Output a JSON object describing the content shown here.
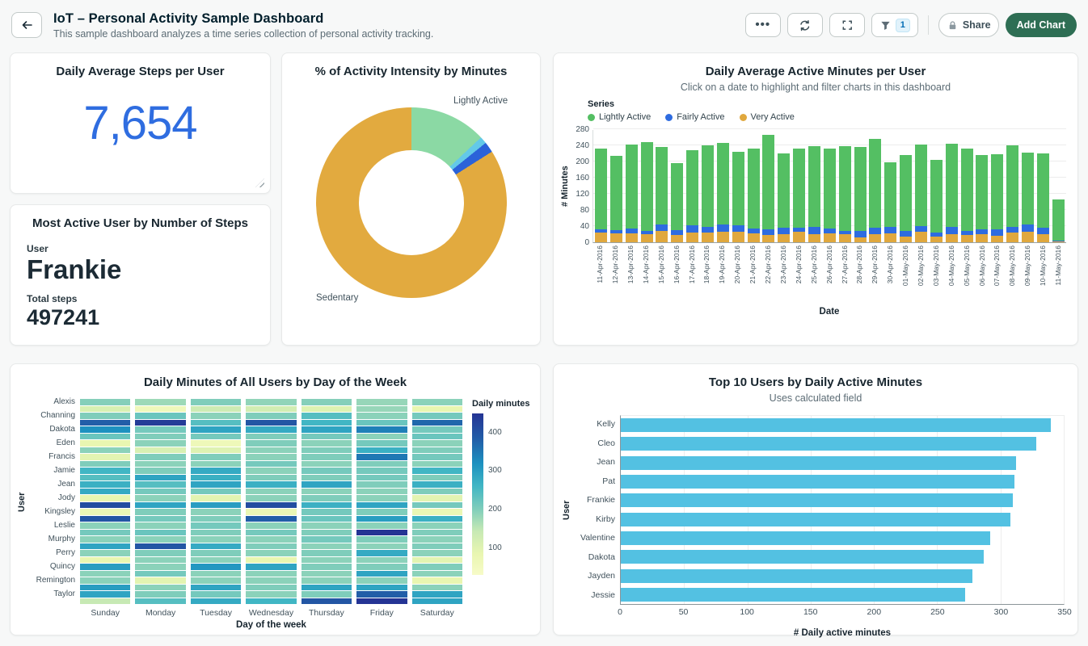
{
  "header": {
    "title": "IoT – Personal Activity Sample Dashboard",
    "subtitle": "This sample dashboard analyzes a time series collection of personal activity tracking.",
    "toolbar": {
      "more_label": "•••",
      "filter_badge": "1",
      "share_label": "Share",
      "add_chart_label": "Add Chart"
    }
  },
  "cards": {
    "steps": {
      "title": "Daily Average Steps per User",
      "value": "7,654"
    },
    "most_active": {
      "title": "Most Active User by Number of Steps",
      "user_label": "User",
      "user_value": "Frankie",
      "steps_label": "Total steps",
      "steps_value": "497241"
    }
  },
  "colors": {
    "accent_blue": "#2f6de0",
    "add_chart_green": "#2e6e54",
    "top10_bar": "#53c1e2",
    "stacked_green": "#54bf63",
    "stacked_blue": "#2e6ce0",
    "stacked_yellow": "#e0a83e"
  },
  "chart_data": [
    {
      "id": "activity-intensity-donut",
      "type": "pie",
      "title": "% of Activity Intensity by Minutes",
      "slices": [
        {
          "label": "Lightly Active",
          "pct": 13,
          "color": "#8bd9a4"
        },
        {
          "label": "",
          "pct": 1.2,
          "color": "#63c9e8"
        },
        {
          "label": "",
          "pct": 1.8,
          "color": "#2b62d9"
        },
        {
          "label": "Sedentary",
          "pct": 84,
          "color": "#e2aa3f"
        }
      ],
      "visible_labels": [
        "Lightly Active",
        "Sedentary"
      ]
    },
    {
      "id": "daily-active-minutes-stacked",
      "type": "bar",
      "stacked": true,
      "title": "Daily Average Active Minutes per User",
      "subtitle": "Click on a date to highlight and filter charts in this dashboard",
      "legend_title": "Series",
      "xlabel": "Date",
      "ylabel": "# Minutes",
      "ylim": [
        0,
        280
      ],
      "yticks": [
        0,
        40,
        80,
        120,
        160,
        200,
        240,
        280
      ],
      "categories": [
        "11-Apr-2016",
        "12-Apr-2016",
        "13-Apr-2016",
        "14-Apr-2016",
        "15-Apr-2016",
        "16-Apr-2016",
        "17-Apr-2016",
        "18-Apr-2016",
        "19-Apr-2016",
        "20-Apr-2016",
        "21-Apr-2016",
        "22-Apr-2016",
        "23-Apr-2016",
        "24-Apr-2016",
        "25-Apr-2016",
        "26-Apr-2016",
        "27-Apr-2016",
        "28-Apr-2016",
        "29-Apr-2016",
        "30-Apr-2016",
        "01-May-2016",
        "02-May-2016",
        "03-May-2016",
        "04-May-2016",
        "05-May-2016",
        "06-May-2016",
        "07-May-2016",
        "08-May-2016",
        "09-May-2016",
        "10-May-2016",
        "11-May-2016"
      ],
      "series": [
        {
          "name": "Lightly Active",
          "color": "#54bf63",
          "values": [
            200,
            184,
            207,
            219,
            193,
            166,
            187,
            202,
            202,
            182,
            198,
            234,
            185,
            197,
            200,
            197,
            210,
            207,
            219,
            161,
            188,
            202,
            180,
            207,
            204,
            184,
            186,
            201,
            178,
            184,
            102
          ]
        },
        {
          "name": "Fairly Active",
          "color": "#2e6ce0",
          "values": [
            8,
            9,
            12,
            9,
            15,
            12,
            18,
            13,
            18,
            16,
            13,
            15,
            15,
            9,
            18,
            13,
            9,
            16,
            16,
            16,
            15,
            15,
            10,
            17,
            10,
            12,
            16,
            14,
            18,
            15,
            2
          ]
        },
        {
          "name": "Very Active",
          "color": "#e0a83e",
          "values": [
            24,
            22,
            23,
            20,
            29,
            18,
            24,
            25,
            27,
            26,
            22,
            18,
            21,
            27,
            21,
            22,
            20,
            13,
            21,
            22,
            14,
            26,
            15,
            21,
            19,
            20,
            17,
            25,
            26,
            21,
            2
          ]
        }
      ],
      "stack_order": [
        "Very Active",
        "Fairly Active",
        "Lightly Active"
      ]
    },
    {
      "id": "weekday-heatmap",
      "type": "heatmap",
      "title": "Daily Minutes of All Users by Day of the Week",
      "xlabel": "Day of the week",
      "ylabel": "User",
      "columns": [
        "Sunday",
        "Monday",
        "Tuesday",
        "Wednesday",
        "Thursday",
        "Friday",
        "Saturday"
      ],
      "rows": 30,
      "row_labels": [
        "Alexis",
        "Channing",
        "Dakota",
        "Eden",
        "Francis",
        "Jamie",
        "Jean",
        "Jody",
        "Kingsley",
        "Leslie",
        "Murphy",
        "Perry",
        "Quincy",
        "Remington",
        "Taylor"
      ],
      "legend": {
        "title": "Daily minutes",
        "ticks": [
          400,
          300,
          200,
          100
        ],
        "domain": [
          30,
          450
        ]
      },
      "color_stops": [
        [
          60,
          "#f7fbc8"
        ],
        [
          120,
          "#e9f6b1"
        ],
        [
          180,
          "#c7e9b4"
        ],
        [
          240,
          "#7fcdbb"
        ],
        [
          300,
          "#41b6c4"
        ],
        [
          360,
          "#1d91c0"
        ],
        [
          420,
          "#225ea8"
        ],
        [
          470,
          "#253494"
        ]
      ],
      "values": [
        [
          235,
          215,
          240,
          225,
          235,
          220,
          230
        ],
        [
          150,
          95,
          170,
          160,
          140,
          220,
          120
        ],
        [
          240,
          260,
          230,
          240,
          280,
          230,
          250
        ],
        [
          420,
          460,
          280,
          430,
          300,
          260,
          410
        ],
        [
          360,
          250,
          330,
          320,
          330,
          380,
          250
        ],
        [
          260,
          240,
          250,
          240,
          250,
          230,
          260
        ],
        [
          120,
          230,
          100,
          240,
          230,
          250,
          230
        ],
        [
          230,
          150,
          140,
          230,
          240,
          310,
          240
        ],
        [
          130,
          240,
          240,
          230,
          240,
          390,
          250
        ],
        [
          240,
          230,
          230,
          250,
          230,
          240,
          230
        ],
        [
          300,
          240,
          320,
          230,
          250,
          250,
          300
        ],
        [
          280,
          330,
          310,
          240,
          240,
          250,
          240
        ],
        [
          310,
          280,
          330,
          310,
          330,
          240,
          310
        ],
        [
          320,
          250,
          250,
          230,
          230,
          230,
          240
        ],
        [
          120,
          230,
          130,
          230,
          240,
          230,
          130
        ],
        [
          440,
          330,
          340,
          440,
          310,
          330,
          250
        ],
        [
          110,
          240,
          230,
          110,
          250,
          240,
          110
        ],
        [
          430,
          250,
          240,
          420,
          260,
          340,
          310
        ],
        [
          230,
          230,
          250,
          230,
          230,
          230,
          230
        ],
        [
          250,
          260,
          240,
          250,
          240,
          470,
          240
        ],
        [
          230,
          230,
          230,
          230,
          250,
          240,
          230
        ],
        [
          330,
          430,
          320,
          240,
          230,
          230,
          240
        ],
        [
          230,
          240,
          240,
          230,
          240,
          320,
          230
        ],
        [
          120,
          230,
          230,
          120,
          230,
          230,
          130
        ],
        [
          340,
          230,
          350,
          330,
          240,
          240,
          240
        ],
        [
          230,
          250,
          230,
          230,
          230,
          330,
          230
        ],
        [
          230,
          130,
          230,
          230,
          230,
          230,
          120
        ],
        [
          340,
          230,
          330,
          240,
          330,
          330,
          230
        ],
        [
          330,
          240,
          250,
          230,
          240,
          420,
          330
        ],
        [
          180,
          280,
          320,
          300,
          430,
          470,
          330
        ]
      ]
    },
    {
      "id": "top10-active-minutes",
      "type": "bar",
      "horizontal": true,
      "title": "Top 10 Users by Daily Active Minutes",
      "subtitle": "Uses calculated field",
      "xlabel": "# Daily active minutes",
      "ylabel": "User",
      "xlim": [
        0,
        350
      ],
      "xticks": [
        0,
        50,
        100,
        150,
        200,
        250,
        300,
        350
      ],
      "color": "#53c1e2",
      "categories": [
        "Kelly",
        "Cleo",
        "Jean",
        "Pat",
        "Frankie",
        "Kirby",
        "Valentine",
        "Dakota",
        "Jayden",
        "Jessie"
      ],
      "values": [
        340,
        328,
        312,
        311,
        310,
        308,
        292,
        287,
        278,
        272
      ]
    }
  ]
}
